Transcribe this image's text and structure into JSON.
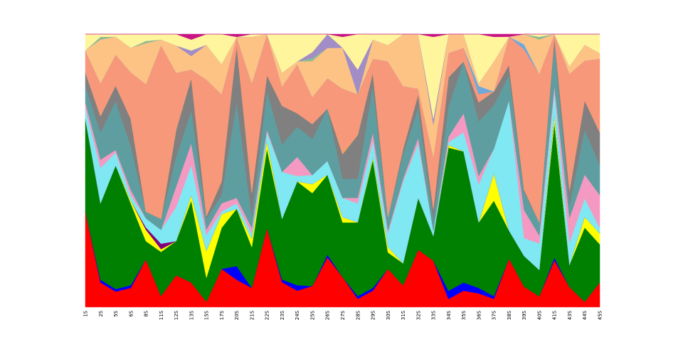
{
  "chart_data": {
    "type": "area",
    "stacked": true,
    "normalized": true,
    "grid": false,
    "legend": "none",
    "title": "",
    "xlabel": "",
    "ylabel": "",
    "ylim": [
      0,
      1
    ],
    "categories": [
      "1S",
      "2S",
      "5S",
      "6S",
      "8S",
      "11S",
      "12S",
      "13S",
      "15S",
      "17S",
      "20S",
      "21S",
      "22S",
      "23S",
      "24S",
      "25S",
      "26S",
      "27S",
      "28S",
      "29S",
      "30S",
      "31S",
      "32S",
      "33S",
      "34S",
      "35S",
      "36S",
      "37S",
      "38S",
      "39S",
      "40S",
      "41S",
      "43S",
      "44S",
      "45S"
    ],
    "series": [
      {
        "color": "#ff0000",
        "values": [
          0.35,
          0.09,
          0.06,
          0.07,
          0.21,
          0.04,
          0.14,
          0.09,
          0.02,
          0.14,
          0.1,
          0.07,
          0.29,
          0.09,
          0.06,
          0.07,
          0.18,
          0.11,
          0.03,
          0.06,
          0.14,
          0.08,
          0.21,
          0.17,
          0.03,
          0.06,
          0.05,
          0.03,
          0.19,
          0.08,
          0.04,
          0.18,
          0.08,
          0.02,
          0.09
        ]
      },
      {
        "color": "#0000ff",
        "values": [
          0.0,
          0.01,
          0.01,
          0.01,
          0.0,
          0.0,
          0.0,
          0.0,
          0.0,
          0.0,
          0.05,
          0.0,
          0.0,
          0.01,
          0.02,
          0.0,
          0.01,
          0.0,
          0.01,
          0.01,
          0.0,
          0.0,
          0.0,
          0.0,
          0.03,
          0.03,
          0.02,
          0.01,
          0.0,
          0.0,
          0.0,
          0.01,
          0.0,
          0.0,
          0.0
        ]
      },
      {
        "color": "#008000",
        "values": [
          0.34,
          0.28,
          0.48,
          0.3,
          0.08,
          0.16,
          0.15,
          0.3,
          0.09,
          0.15,
          0.21,
          0.15,
          0.29,
          0.22,
          0.38,
          0.31,
          0.29,
          0.2,
          0.27,
          0.47,
          0.06,
          0.08,
          0.19,
          0.09,
          0.53,
          0.48,
          0.24,
          0.35,
          0.11,
          0.12,
          0.1,
          0.52,
          0.09,
          0.28,
          0.14
        ]
      },
      {
        "color": "#ffff00",
        "values": [
          0.0,
          0.0,
          0.0,
          0.01,
          0.05,
          0.01,
          0.0,
          0.02,
          0.1,
          0.05,
          0.0,
          0.03,
          0.03,
          0.0,
          0.0,
          0.03,
          0.0,
          0.02,
          0.0,
          0.01,
          0.02,
          0.0,
          0.0,
          0.0,
          0.01,
          0.0,
          0.0,
          0.1,
          0.0,
          0.0,
          0.0,
          0.03,
          0.0,
          0.04,
          0.04
        ]
      },
      {
        "color": "#800080",
        "values": [
          0.0,
          0.0,
          0.0,
          0.0,
          0.01,
          0.02,
          0.0,
          0.0,
          0.0,
          0.0,
          0.0,
          0.0,
          0.0,
          0.0,
          0.0,
          0.0,
          0.0,
          0.0,
          0.0,
          0.0,
          0.0,
          0.0,
          0.0,
          0.0,
          0.0,
          0.0,
          0.0,
          0.0,
          0.0,
          0.0,
          0.0,
          0.0,
          0.0,
          0.0,
          0.0
        ]
      },
      {
        "color": "#7fe8f2",
        "values": [
          0.04,
          0.13,
          0.05,
          0.02,
          0.04,
          0.05,
          0.15,
          0.11,
          0.06,
          0.01,
          0.02,
          0.02,
          0.03,
          0.17,
          0.02,
          0.03,
          0.05,
          0.07,
          0.07,
          0.06,
          0.05,
          0.3,
          0.2,
          0.02,
          0.01,
          0.07,
          0.14,
          0.09,
          0.51,
          0.07,
          0.1,
          0.09,
          0.09,
          0.07,
          0.02
        ]
      },
      {
        "color": "#f49ac2",
        "values": [
          0.02,
          0.03,
          0.01,
          0.02,
          0.0,
          0.0,
          0.09,
          0.08,
          0.02,
          0.03,
          0.02,
          0.02,
          0.01,
          0.0,
          0.07,
          0.0,
          0.0,
          0.0,
          0.02,
          0.03,
          0.01,
          0.01,
          0.02,
          0.0,
          0.02,
          0.07,
          0.03,
          0.0,
          0.0,
          0.11,
          0.03,
          0.02,
          0.1,
          0.09,
          0.12
        ]
      },
      {
        "color": "#5f9ea0",
        "values": [
          0.06,
          0.1,
          0.19,
          0.16,
          0.03,
          0.04,
          0.13,
          0.12,
          0.04,
          0.03,
          0.35,
          0.04,
          0.14,
          0.1,
          0.11,
          0.12,
          0.19,
          0.07,
          0.07,
          0.17,
          0.05,
          0.09,
          0.11,
          0.04,
          0.11,
          0.19,
          0.2,
          0.16,
          0.1,
          0.07,
          0.05,
          0.16,
          0.05,
          0.17,
          0.11
        ]
      },
      {
        "color": "#808080",
        "values": [
          0.05,
          0.06,
          0.06,
          0.1,
          0.0,
          0.0,
          0.12,
          0.12,
          0.01,
          0.05,
          0.21,
          0.09,
          0.06,
          0.14,
          0.05,
          0.05,
          0.0,
          0.09,
          0.16,
          0.05,
          0.0,
          0.02,
          0.05,
          0.04,
          0.11,
          0.0,
          0.07,
          0.05,
          0.04,
          0.01,
          0.0,
          0.03,
          0.06,
          0.11,
          0.12
        ]
      },
      {
        "color": "#f4a261",
        "values": [
          0.0,
          0.0,
          0.0,
          0.0,
          0.0,
          0.0,
          0.0,
          0.0,
          0.0,
          0.0,
          0.0,
          0.0,
          0.0,
          0.0,
          0.0,
          0.0,
          0.0,
          0.01,
          0.0,
          0.0,
          0.0,
          0.0,
          0.0,
          0.0,
          0.0,
          0.0,
          0.0,
          0.0,
          0.0,
          0.0,
          0.0,
          0.0,
          0.0,
          0.0,
          0.0
        ]
      },
      {
        "color": "#f7987a",
        "values": [
          0.08,
          0.12,
          0.12,
          0.17,
          0.56,
          0.63,
          0.25,
          0.03,
          0.51,
          0.32,
          0.03,
          0.4,
          0.15,
          0.07,
          0.18,
          0.09,
          0.11,
          0.23,
          0.15,
          0.05,
          0.57,
          0.23,
          0.02,
          0.19,
          0.09,
          0.05,
          0.03,
          0.0,
          0.11,
          0.55,
          0.56,
          0.01,
          0.47,
          0.15,
          0.27
        ]
      },
      {
        "color": "#6fa8dc",
        "values": [
          0.0,
          0.0,
          0.0,
          0.0,
          0.0,
          0.0,
          0.0,
          0.0,
          0.0,
          0.0,
          0.0,
          0.0,
          0.0,
          0.0,
          0.0,
          0.0,
          0.0,
          0.0,
          0.0,
          0.0,
          0.0,
          0.0,
          0.0,
          0.0,
          0.0,
          0.0,
          0.03,
          0.0,
          0.0,
          0.02,
          0.0,
          0.0,
          0.0,
          0.0,
          0.0
        ]
      },
      {
        "color": "#fdc385",
        "values": [
          0.0,
          0.16,
          0.07,
          0.09,
          0.18,
          0.02,
          0.12,
          0.05,
          0.13,
          0.11,
          0.0,
          0.17,
          0.0,
          0.05,
          0.01,
          0.12,
          0.11,
          0.15,
          0.0,
          0.07,
          0.06,
          0.19,
          0.2,
          0.12,
          0.07,
          0.05,
          0.01,
          0.11,
          0.0,
          0.04,
          0.13,
          0.0,
          0.03,
          0.06,
          0.02
        ]
      },
      {
        "color": "#8fbc8f",
        "values": [
          0.0,
          0.01,
          0.0,
          0.0,
          0.01,
          0.0,
          0.0,
          0.0,
          0.0,
          0.0,
          0.0,
          0.0,
          0.0,
          0.0,
          0.0,
          0.01,
          0.0,
          0.0,
          0.0,
          0.0,
          0.0,
          0.0,
          0.0,
          0.0,
          0.0,
          0.0,
          0.0,
          0.0,
          0.0,
          0.0,
          0.01,
          0.0,
          0.0,
          0.0,
          0.0
        ]
      },
      {
        "color": "#a28dc6",
        "values": [
          0.0,
          0.0,
          0.0,
          0.0,
          0.0,
          0.0,
          0.0,
          0.02,
          0.0,
          0.0,
          0.0,
          0.0,
          0.0,
          0.0,
          0.0,
          0.02,
          0.05,
          0.0,
          0.09,
          0.0,
          0.0,
          0.0,
          0.0,
          0.02,
          0.0,
          0.0,
          0.0,
          0.0,
          0.0,
          0.0,
          0.0,
          0.0,
          0.0,
          0.0,
          0.0
        ]
      },
      {
        "color": "#fff59d",
        "values": [
          0.06,
          0.01,
          0.01,
          0.05,
          0.03,
          0.02,
          0.05,
          0.04,
          0.04,
          0.11,
          0.0,
          0.01,
          0.0,
          0.14,
          0.1,
          0.06,
          0.0,
          0.04,
          0.13,
          0.02,
          0.04,
          0.0,
          0.0,
          0.3,
          0.0,
          0.0,
          0.18,
          0.09,
          0.0,
          0.0,
          0.01,
          0.0,
          0.13,
          0.04,
          0.07
        ]
      },
      {
        "color": "#c71585",
        "values": [
          0.0,
          0.0,
          0.0,
          0.0,
          0.0,
          0.0,
          0.0,
          0.02,
          0.0,
          0.0,
          0.01,
          0.0,
          0.0,
          0.0,
          0.0,
          0.0,
          0.0,
          0.01,
          0.0,
          0.0,
          0.0,
          0.0,
          0.0,
          0.01,
          0.0,
          0.0,
          0.0,
          0.01,
          0.01,
          0.0,
          0.0,
          0.0,
          0.0,
          0.0,
          0.0
        ]
      }
    ]
  }
}
